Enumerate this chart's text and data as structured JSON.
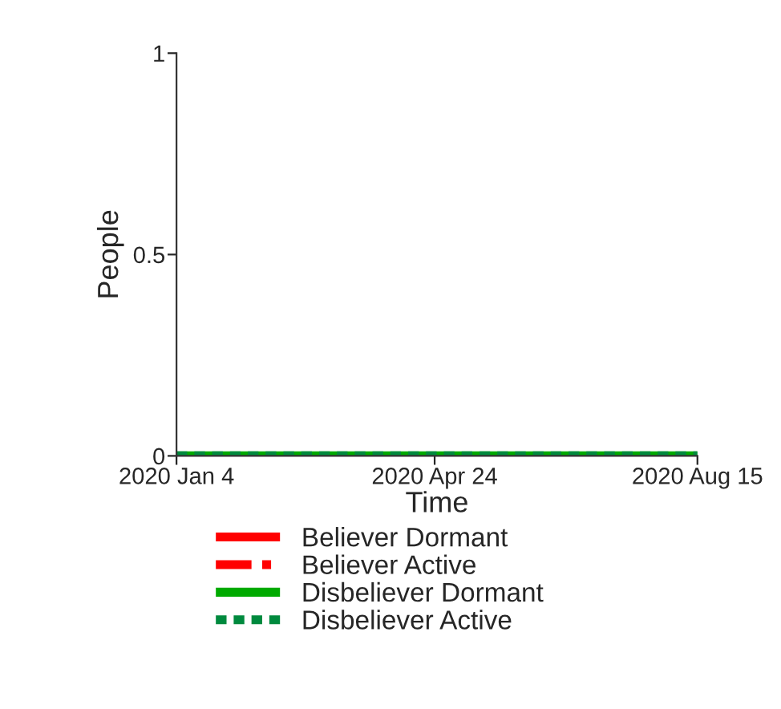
{
  "chart_data": {
    "type": "line",
    "xlabel": "Time",
    "ylabel": "People",
    "x": [
      "2020-01-04",
      "2020-08-15"
    ],
    "series": [
      {
        "name": "Believer Dormant",
        "color": "#ff0000",
        "line_style": "solid",
        "values": [
          null,
          null
        ]
      },
      {
        "name": "Believer Active",
        "color": "#ff0000",
        "line_style": "dashed",
        "values": [
          null,
          null
        ]
      },
      {
        "name": "Disbeliever Dormant",
        "color": "#00aa00",
        "line_style": "solid",
        "values": [
          0,
          0
        ]
      },
      {
        "name": "Disbeliever Active",
        "color": "#008a3e",
        "line_style": "dotted",
        "values": [
          0,
          0
        ]
      }
    ],
    "xlim": [
      "2020-01-04",
      "2020-08-15"
    ],
    "xticks": [
      {
        "value": "2020-01-04",
        "label": "2020 Jan 4"
      },
      {
        "value": "2020-04-24",
        "label": "2020 Apr 24"
      },
      {
        "value": "2020-08-15",
        "label": "2020 Aug 15"
      }
    ],
    "ylim": [
      0,
      1
    ],
    "yticks": [
      0,
      0.5,
      1
    ],
    "grid": false,
    "legend": "bottom"
  }
}
